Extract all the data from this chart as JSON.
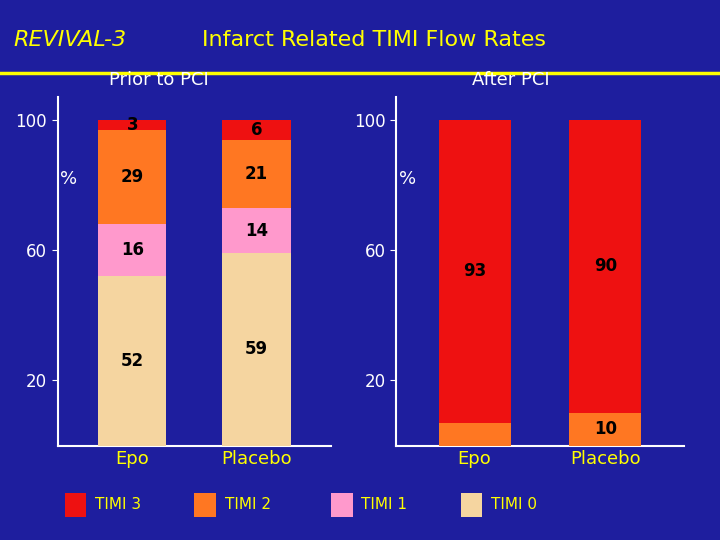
{
  "title": "Infarct Related TIMI Flow Rates",
  "title_left": "REVIVAL-3",
  "subtitle_left": "Prior to PCI",
  "subtitle_right": "After PCI",
  "background_color": "#1e1e9e",
  "title_color": "#ffff00",
  "subtitle_color": "#ffffff",
  "label_color": "#ffff00",
  "bar_text_color": "#000000",
  "axis_text_color": "#ffffff",
  "ytick_color": "#ffffff",
  "colors": {
    "TIMI 3": "#ee1111",
    "TIMI 2": "#ff7722",
    "TIMI 1": "#ff99cc",
    "TIMI 0": "#f5d5a0"
  },
  "prior_epo": {
    "TIMI 0": 52,
    "TIMI 1": 16,
    "TIMI 2": 29,
    "TIMI 3": 3
  },
  "prior_placebo": {
    "TIMI 0": 59,
    "TIMI 1": 14,
    "TIMI 2": 21,
    "TIMI 3": 6
  },
  "after_epo": {
    "TIMI 0": 0,
    "TIMI 1": 0,
    "TIMI 2": 7,
    "TIMI 3": 93
  },
  "after_placebo": {
    "TIMI 0": 0,
    "TIMI 1": 0,
    "TIMI 2": 10,
    "TIMI 3": 90
  },
  "ylim": [
    0,
    107
  ],
  "yticks": [
    20,
    60,
    100
  ],
  "bar_width": 0.55,
  "categories": [
    "Epo",
    "Placebo"
  ],
  "legend_items": [
    "TIMI 3",
    "TIMI 2",
    "TIMI 1",
    "TIMI 0"
  ]
}
